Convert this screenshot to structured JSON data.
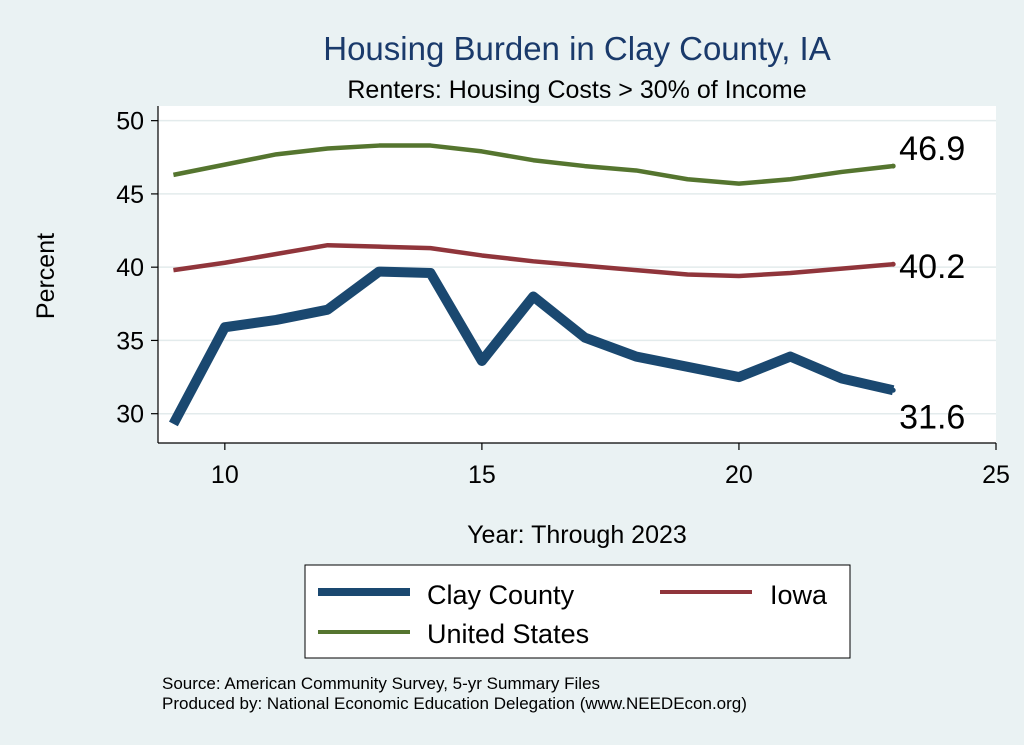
{
  "chart_data": {
    "type": "line",
    "title": "Housing Burden in Clay County, IA",
    "subtitle": "Renters: Housing Costs > 30% of Income",
    "xlabel": "Year: Through 2023",
    "ylabel": "Percent",
    "xlim": [
      8.7,
      25
    ],
    "ylim": [
      28,
      51
    ],
    "xticks": [
      10,
      15,
      20,
      25
    ],
    "yticks": [
      30,
      35,
      40,
      45,
      50
    ],
    "grid": true,
    "legend_position": "bottom",
    "colors": {
      "background": "#eaf2f3",
      "plot_background": "#ffffff",
      "title": "#1a3a6b",
      "clay": "#1a4870",
      "iowa": "#90353b",
      "us": "#55752f"
    },
    "series": [
      {
        "name": "Clay County",
        "color": "#1a4870",
        "x": [
          9,
          10,
          11,
          12,
          13,
          14,
          15,
          16,
          17,
          18,
          19,
          20,
          21,
          22,
          23
        ],
        "y": [
          29.3,
          35.9,
          36.4,
          37.1,
          39.7,
          39.6,
          33.6,
          38.0,
          35.2,
          33.9,
          33.2,
          32.5,
          33.9,
          32.4,
          31.6
        ],
        "end_label": "31.6"
      },
      {
        "name": "Iowa",
        "color": "#90353b",
        "x": [
          9,
          10,
          11,
          12,
          13,
          14,
          15,
          16,
          17,
          18,
          19,
          20,
          21,
          22,
          23
        ],
        "y": [
          39.8,
          40.3,
          40.9,
          41.5,
          41.4,
          41.3,
          40.8,
          40.4,
          40.1,
          39.8,
          39.5,
          39.4,
          39.6,
          39.9,
          40.2
        ],
        "end_label": "40.2"
      },
      {
        "name": "United States",
        "color": "#55752f",
        "x": [
          9,
          10,
          11,
          12,
          13,
          14,
          15,
          16,
          17,
          18,
          19,
          20,
          21,
          22,
          23
        ],
        "y": [
          46.3,
          47.0,
          47.7,
          48.1,
          48.3,
          48.3,
          47.9,
          47.3,
          46.9,
          46.6,
          46.0,
          45.7,
          46.0,
          46.5,
          46.9
        ],
        "end_label": "46.9"
      }
    ],
    "legend": [
      "Clay County",
      "Iowa",
      "United States"
    ],
    "notes": [
      "Source: American Community Survey, 5-yr Summary Files",
      "Produced by: National Economic Education Delegation (www.NEEDEcon.org)"
    ]
  }
}
